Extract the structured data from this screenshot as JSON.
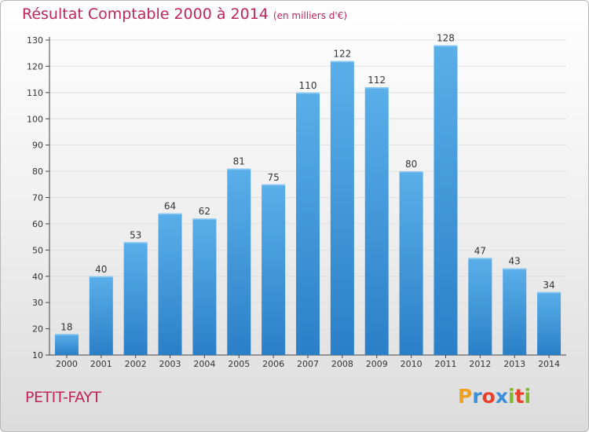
{
  "chart_data": {
    "type": "bar",
    "title": "Résultat Comptable 2000 à 2014",
    "subtitle": "(en milliers d'€)",
    "categories": [
      "2000",
      "2001",
      "2002",
      "2003",
      "2004",
      "2005",
      "2006",
      "2007",
      "2008",
      "2009",
      "2010",
      "2011",
      "2012",
      "2013",
      "2014"
    ],
    "values": [
      18,
      40,
      53,
      64,
      62,
      81,
      75,
      110,
      122,
      112,
      80,
      128,
      47,
      43,
      34
    ],
    "ylim": [
      10,
      130
    ],
    "yticks": [
      10,
      20,
      30,
      40,
      50,
      60,
      70,
      80,
      90,
      100,
      110,
      120,
      130
    ],
    "xlabel": "",
    "ylabel": "",
    "grid": true
  },
  "commune": "PETIT-FAYT",
  "logo": {
    "letters": [
      "P",
      "r",
      "o",
      "x",
      "i",
      "t",
      "i"
    ],
    "colors": [
      "#f0a020",
      "#3a8fd8",
      "#e8402a",
      "#3a8fd8",
      "#80b830",
      "#e8402a",
      "#80b830"
    ]
  },
  "colors": {
    "title": "#c0245a",
    "bar_light": "#5aafe9",
    "bar_dark": "#2b7fc7"
  }
}
